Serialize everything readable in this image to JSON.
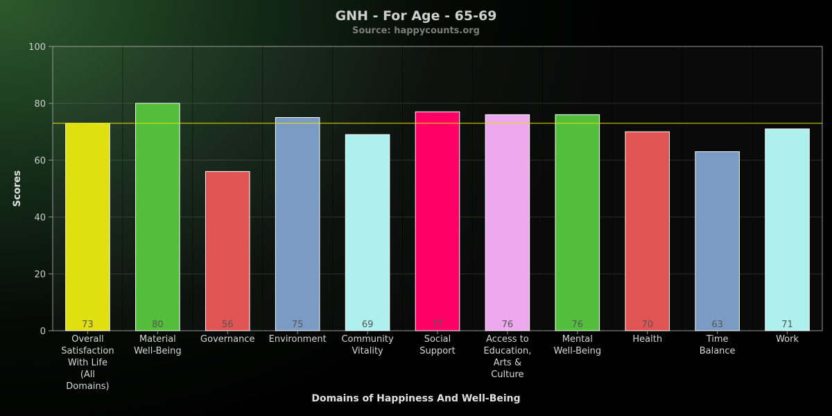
{
  "chart_data": {
    "type": "bar",
    "title": "GNH - For Age - 65-69",
    "subtitle": "Source: happycounts.org",
    "xlabel": "Domains of Happiness And Well-Being",
    "ylabel": "Scores",
    "ylim": [
      0,
      100
    ],
    "yticks": [
      0,
      20,
      40,
      60,
      80,
      100
    ],
    "grid": true,
    "reference_line": {
      "value": 73,
      "color": "#e6e600"
    },
    "categories": [
      "Overall Satisfaction With Life (All Domains)",
      "Material Well-Being",
      "Governance",
      "Environment",
      "Community Vitality",
      "Social Support",
      "Access to Education, Arts & Culture",
      "Mental Well-Being",
      "Health",
      "Time Balance",
      "Work"
    ],
    "category_lines": [
      [
        "Overall",
        "Satisfaction",
        "With Life",
        "(All",
        "Domains)"
      ],
      [
        "Material",
        "Well-Being"
      ],
      [
        "Governance"
      ],
      [
        "Environment"
      ],
      [
        "Community",
        "Vitality"
      ],
      [
        "Social",
        "Support"
      ],
      [
        "Access to",
        "Education,",
        "Arts &",
        "Culture"
      ],
      [
        "Mental",
        "Well-Being"
      ],
      [
        "Health"
      ],
      [
        "Time",
        "Balance"
      ],
      [
        "Work"
      ]
    ],
    "values": [
      73,
      80,
      56,
      75,
      69,
      77,
      76,
      76,
      70,
      63,
      71
    ],
    "colors": [
      "#e0e010",
      "#52be3c",
      "#e05454",
      "#7a9cc4",
      "#aef0ee",
      "#ff0066",
      "#eda8ee",
      "#52be3c",
      "#e05454",
      "#7a9cc4",
      "#aef0ee"
    ]
  }
}
